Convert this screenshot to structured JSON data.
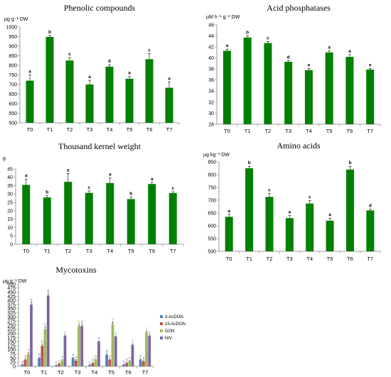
{
  "chart_data": [
    {
      "type": "bar",
      "title": "Phenolic compounds",
      "ylabel": "µg g⁻¹ DW",
      "categories": [
        "T0",
        "T1",
        "T2",
        "T3",
        "T4",
        "T5",
        "T6",
        "T7"
      ],
      "values": [
        720,
        948,
        825,
        700,
        793,
        730,
        832,
        683
      ],
      "errors": [
        30,
        8,
        15,
        22,
        10,
        12,
        30,
        30
      ],
      "letters": [
        "a",
        "b",
        "c",
        "a",
        "d",
        "a",
        "c",
        "a"
      ],
      "ylim": [
        500,
        1000
      ],
      "yticks": [
        500,
        550,
        600,
        650,
        700,
        750,
        800,
        850,
        900,
        950,
        1000
      ],
      "color": "#008000"
    },
    {
      "type": "bar",
      "title": "Acid phosphatases",
      "ylabel": "µM h⁻¹ g⁻¹ DW",
      "categories": [
        "T0",
        "T1",
        "T2",
        "T3",
        "T4",
        "T5",
        "T6",
        "T7"
      ],
      "values": [
        41.3,
        43.7,
        42.7,
        39.3,
        37.8,
        41.0,
        40.2,
        37.9
      ],
      "errors": [
        0.3,
        0.3,
        0.3,
        0.2,
        0.3,
        0.3,
        0.4,
        0.2
      ],
      "letters": [
        "a",
        "b",
        "c",
        "d",
        "e",
        "a",
        "a",
        "e"
      ],
      "ylim": [
        28,
        46
      ],
      "yticks": [
        28,
        30,
        32,
        34,
        36,
        38,
        40,
        42,
        44,
        46
      ],
      "color": "#008000"
    },
    {
      "type": "bar",
      "title": "Thousand kernel weight",
      "ylabel": "g",
      "categories": [
        "T0",
        "T1",
        "T2",
        "T3",
        "T4",
        "T5",
        "T6",
        "T7"
      ],
      "values": [
        35.5,
        28.0,
        37.3,
        30.7,
        36.6,
        27.0,
        36.0,
        30.6
      ],
      "errors": [
        3.5,
        1.0,
        5.0,
        1.2,
        3.0,
        1.2,
        1.0,
        0.8
      ],
      "letters": [
        "a",
        "b",
        "a",
        "c",
        "a",
        "b",
        "a",
        "c"
      ],
      "ylim": [
        0,
        45
      ],
      "yticks": [
        0,
        5,
        10,
        15,
        20,
        25,
        30,
        35,
        40,
        45
      ],
      "color": "#008000"
    },
    {
      "type": "bar",
      "title": "Amino acids",
      "ylabel": "µg kg⁻¹ DW",
      "categories": [
        "T0",
        "T1",
        "T2",
        "T3",
        "T4",
        "T5",
        "T6",
        "T7"
      ],
      "values": [
        635,
        825,
        713,
        630,
        687,
        620,
        820,
        660
      ],
      "errors": [
        10,
        8,
        13,
        10,
        12,
        10,
        13,
        5
      ],
      "letters": [
        "a",
        "b",
        "c",
        "a",
        "c",
        "a",
        "b",
        "d"
      ],
      "ylim": [
        500,
        850
      ],
      "yticks": [
        500,
        550,
        600,
        650,
        700,
        750,
        800,
        850
      ],
      "color": "#008000"
    },
    {
      "type": "bar",
      "title": "Mycotoxins",
      "ylabel": "µg g⁻¹ DW",
      "categories": [
        "T0",
        "T1",
        "T2",
        "T3",
        "T4",
        "T5",
        "T6",
        "T7"
      ],
      "ylim": [
        0,
        500
      ],
      "yticks": [
        0,
        25,
        50,
        75,
        100,
        125,
        150,
        175,
        200,
        225,
        250,
        275,
        300,
        325,
        350,
        375,
        400,
        425,
        450,
        475,
        500
      ],
      "legend_position": "right",
      "series": [
        {
          "name": "3-AcDON",
          "color": "#4F81BD",
          "values": [
            10,
            50,
            5,
            50,
            8,
            70,
            10,
            40
          ],
          "errors": [
            3,
            5,
            2,
            5,
            2,
            8,
            2,
            5
          ],
          "letters": [
            "a",
            "b",
            "a",
            "a",
            "c",
            "d",
            "a",
            "b"
          ]
        },
        {
          "name": "15-AcDON",
          "color": "#C0504D",
          "values": [
            40,
            125,
            15,
            35,
            20,
            40,
            20,
            30
          ],
          "errors": [
            5,
            10,
            3,
            5,
            3,
            5,
            3,
            5
          ],
          "letters": [
            "a",
            "b",
            "c",
            "a",
            "d",
            "a",
            "d",
            "a"
          ]
        },
        {
          "name": "DON",
          "color": "#9BBB59",
          "values": [
            75,
            225,
            35,
            245,
            40,
            255,
            30,
            205
          ],
          "errors": [
            8,
            15,
            5,
            10,
            5,
            15,
            5,
            10
          ],
          "letters": [
            "a",
            "bc",
            "d",
            "b",
            "de",
            "b",
            "e",
            "c"
          ]
        },
        {
          "name": "NIV",
          "color": "#8064A2",
          "values": [
            375,
            430,
            185,
            245,
            150,
            180,
            130,
            185
          ],
          "errors": [
            15,
            15,
            5,
            10,
            5,
            5,
            5,
            5
          ],
          "letters": [
            "a",
            "b",
            "c",
            "d",
            "e",
            "c",
            "f",
            "c"
          ]
        }
      ]
    }
  ]
}
